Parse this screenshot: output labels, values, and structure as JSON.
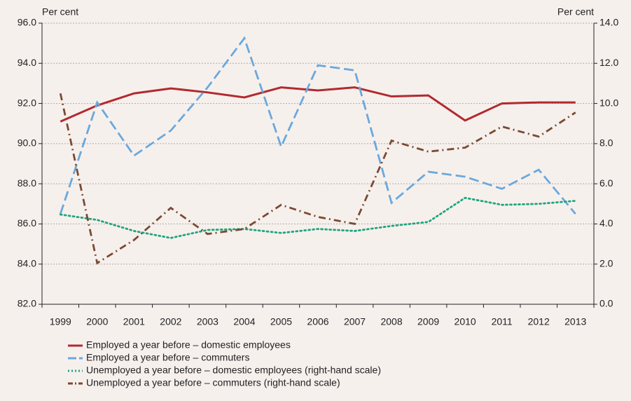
{
  "chart_data": {
    "type": "line",
    "ylabel": "Per cent",
    "y2label": "Per cent",
    "categories": [
      "1999",
      "2000",
      "2001",
      "2002",
      "2003",
      "2004",
      "2005",
      "2006",
      "2007",
      "2008",
      "2009",
      "2010",
      "2011",
      "2012",
      "2013"
    ],
    "ylim": [
      82,
      96
    ],
    "yticks": [
      {
        "value": 82,
        "label": "82.0"
      },
      {
        "value": 84,
        "label": "84.0"
      },
      {
        "value": 86,
        "label": "86.0"
      },
      {
        "value": 88,
        "label": "88.0"
      },
      {
        "value": 90,
        "label": "90.0"
      },
      {
        "value": 92,
        "label": "92.0"
      },
      {
        "value": 94,
        "label": "94.0"
      },
      {
        "value": 96,
        "label": "96.0"
      }
    ],
    "y2lim": [
      0,
      14
    ],
    "y2ticks": [
      {
        "value": 0,
        "label": "0.0"
      },
      {
        "value": 2,
        "label": "2.0"
      },
      {
        "value": 4,
        "label": "4.0"
      },
      {
        "value": 6,
        "label": "6.0"
      },
      {
        "value": 8,
        "label": "8.0"
      },
      {
        "value": 10,
        "label": "10.0"
      },
      {
        "value": 12,
        "label": "12.0"
      },
      {
        "value": 14,
        "label": "14.0"
      }
    ],
    "grid": true,
    "legend": "bottom",
    "series": [
      {
        "name": "Employed a year before – domestic employees",
        "color": "#b22a2e",
        "style": "solid",
        "values": [
          91.1,
          91.9,
          92.5,
          92.75,
          92.55,
          92.3,
          92.8,
          92.65,
          92.8,
          92.35,
          92.4,
          91.15,
          92.0,
          92.05,
          92.05
        ]
      },
      {
        "name": "Employed a year before – commuters",
        "color": "#6aa8dc",
        "style": "dashed",
        "values": [
          86.5,
          92.05,
          89.4,
          90.65,
          92.8,
          95.25,
          89.85,
          93.9,
          93.65,
          87.05,
          88.6,
          88.35,
          87.75,
          88.7,
          86.5
        ]
      },
      {
        "name": "Unemployed a year before – domestic employees (right-hand scale)",
        "color": "#1fa67e",
        "style": "dotted",
        "axis": "y2",
        "values": [
          4.47,
          4.2,
          3.65,
          3.3,
          3.7,
          3.75,
          3.55,
          3.75,
          3.65,
          3.9,
          4.1,
          5.3,
          4.95,
          5.0,
          5.15
        ]
      },
      {
        "name": "Unemployed a year before – commuters (right-hand scale)",
        "color": "#7a4a32",
        "style": "dashdot",
        "axis": "y2",
        "values": [
          10.5,
          2.05,
          3.2,
          4.8,
          3.5,
          3.75,
          4.95,
          4.35,
          4.0,
          8.15,
          7.6,
          7.8,
          8.85,
          8.35,
          9.55
        ]
      }
    ]
  }
}
